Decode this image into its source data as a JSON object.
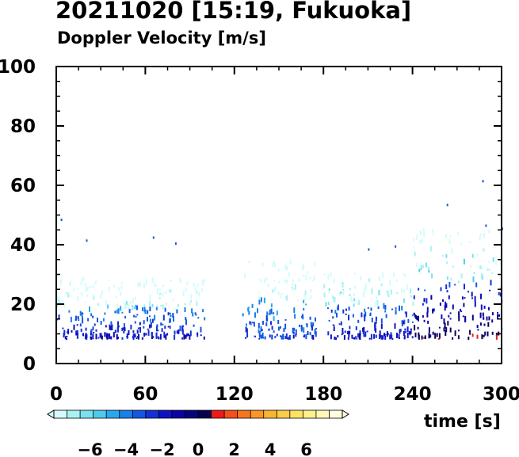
{
  "chart_data": {
    "type": "heatmap",
    "title": "20211020 [15:19, Fukuoka]",
    "subtitle": "Doppler Velocity [m/s]",
    "xlabel": "time [s]",
    "ylabel": "",
    "xlim": [
      0,
      300
    ],
    "ylim": [
      0,
      100
    ],
    "x_ticks": [
      0,
      60,
      120,
      180,
      240,
      300
    ],
    "y_ticks": [
      0,
      20,
      40,
      60,
      80,
      100
    ],
    "colorbar": {
      "min": -8,
      "max": 8,
      "ticks": [
        -6,
        -4,
        -2,
        0,
        2,
        4,
        6
      ],
      "tick_labels": [
        "−6",
        "−4",
        "−2",
        "0",
        "2",
        "4",
        "6"
      ],
      "colors": [
        "#d4fbfb",
        "#a8f2f4",
        "#78e2ee",
        "#4ccbef",
        "#2aa8ee",
        "#1a80ea",
        "#1557e4",
        "#1331d6",
        "#1012c2",
        "#0a04a4",
        "#08037c",
        "#080150",
        "#ed1a1a",
        "#f4501a",
        "#f5761e",
        "#f89626",
        "#f9b432",
        "#fbcc47",
        "#fde264",
        "#fef08c",
        "#fff8b8",
        "#fffce0"
      ]
    },
    "data_extent": {
      "x": [
        0,
        300
      ],
      "y": [
        8,
        62
      ]
    },
    "density_profile": [
      {
        "x_range": [
          0,
          100
        ],
        "y_range": [
          8,
          28
        ],
        "velocity_range": [
          -6,
          -1
        ]
      },
      {
        "x_range": [
          125,
          175
        ],
        "y_range": [
          8,
          34
        ],
        "velocity_range": [
          -6,
          -2
        ]
      },
      {
        "x_range": [
          180,
          240
        ],
        "y_range": [
          8,
          30
        ],
        "velocity_range": [
          -5,
          -1
        ]
      },
      {
        "x_range": [
          240,
          300
        ],
        "y_range": [
          8,
          45
        ],
        "velocity_range": [
          -6,
          1
        ]
      }
    ]
  }
}
